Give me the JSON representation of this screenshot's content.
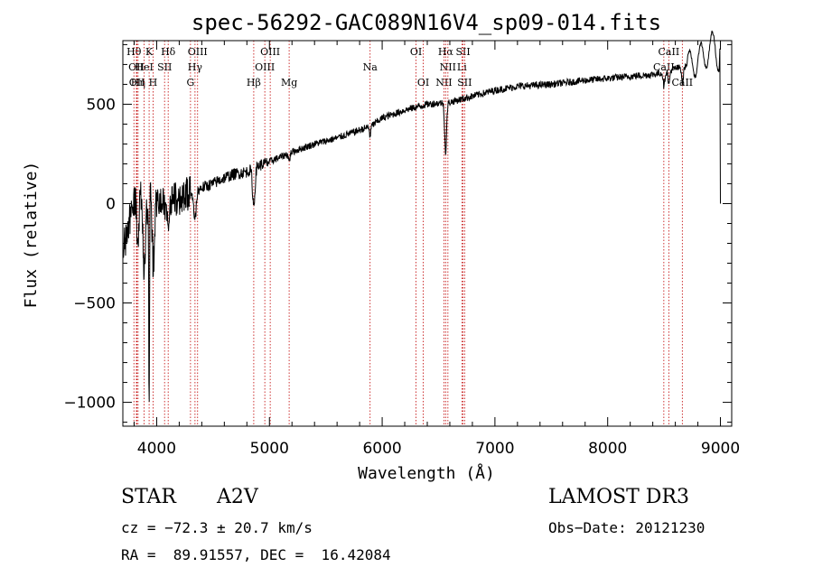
{
  "chart_data": {
    "type": "line",
    "title": "spec-56292-GAC089N16V4_sp09-014.fits",
    "xlabel": "Wavelength (Å)",
    "ylabel": "Flux (relative)",
    "xlim": [
      3700,
      9100
    ],
    "ylim": [
      -1120,
      820
    ],
    "xticks": [
      4000,
      5000,
      6000,
      7000,
      8000,
      9000
    ],
    "xtick_labels": [
      "4000",
      "5000",
      "6000",
      "7000",
      "8000",
      "9000"
    ],
    "yticks": [
      500,
      0,
      -500,
      -1000
    ],
    "ytick_labels": [
      "500",
      "0",
      "−500",
      "−1000"
    ],
    "spectrum_anchors": [
      [
        3700,
        -250
      ],
      [
        3760,
        -80
      ],
      [
        3800,
        -10
      ],
      [
        3850,
        50
      ],
      [
        3900,
        -60
      ],
      [
        3950,
        60
      ],
      [
        4000,
        0
      ],
      [
        4100,
        10
      ],
      [
        4200,
        30
      ],
      [
        4300,
        50
      ],
      [
        4400,
        80
      ],
      [
        4500,
        100
      ],
      [
        4600,
        130
      ],
      [
        4700,
        150
      ],
      [
        4800,
        160
      ],
      [
        4900,
        190
      ],
      [
        5000,
        210
      ],
      [
        5200,
        260
      ],
      [
        5400,
        300
      ],
      [
        5600,
        330
      ],
      [
        5800,
        370
      ],
      [
        5900,
        390
      ],
      [
        6000,
        430
      ],
      [
        6200,
        470
      ],
      [
        6400,
        500
      ],
      [
        6600,
        510
      ],
      [
        6800,
        540
      ],
      [
        7000,
        570
      ],
      [
        7200,
        590
      ],
      [
        7500,
        600
      ],
      [
        7800,
        620
      ],
      [
        8000,
        630
      ],
      [
        8200,
        640
      ],
      [
        8400,
        650
      ],
      [
        8500,
        660
      ],
      [
        8600,
        680
      ],
      [
        8700,
        690
      ],
      [
        8800,
        720
      ],
      [
        8900,
        770
      ],
      [
        8950,
        800
      ],
      [
        8990,
        720
      ],
      [
        9000,
        0
      ]
    ],
    "absorption_features": [
      {
        "x": 3835,
        "depth": 250,
        "width": 12
      },
      {
        "x": 3889,
        "depth": 300,
        "width": 12
      },
      {
        "x": 3933,
        "depth": 1000,
        "width": 5
      },
      {
        "x": 3970,
        "depth": 350,
        "width": 14
      },
      {
        "x": 4102,
        "depth": 100,
        "width": 15
      },
      {
        "x": 4340,
        "depth": 140,
        "width": 15
      },
      {
        "x": 4861,
        "depth": 190,
        "width": 15
      },
      {
        "x": 5175,
        "depth": 40,
        "width": 10
      },
      {
        "x": 5893,
        "depth": 50,
        "width": 8
      },
      {
        "x": 6563,
        "depth": 250,
        "width": 12
      },
      {
        "x": 8500,
        "depth": 70,
        "width": 10
      },
      {
        "x": 8544,
        "depth": 70,
        "width": 10
      },
      {
        "x": 8664,
        "depth": 80,
        "width": 10
      }
    ],
    "line_markers": [
      {
        "x": 3798,
        "label": "Hθ",
        "row": 1
      },
      {
        "x": 3820,
        "label": "OII",
        "row": 2
      },
      {
        "x": 3825,
        "label": "OII",
        "row": 3
      },
      {
        "x": 3835,
        "label": "Hη",
        "row": 3
      },
      {
        "x": 3889,
        "label": "HeI",
        "row": 2
      },
      {
        "x": 3933,
        "label": "K",
        "row": 1
      },
      {
        "x": 3968,
        "label": "H",
        "row": 3
      },
      {
        "x": 4070,
        "label": "SII",
        "row": 2
      },
      {
        "x": 4102,
        "label": "Hδ",
        "row": 1
      },
      {
        "x": 4300,
        "label": "G",
        "row": 3
      },
      {
        "x": 4340,
        "label": "Hγ",
        "row": 2
      },
      {
        "x": 4363,
        "label": "OIII",
        "row": 1
      },
      {
        "x": 4861,
        "label": "Hβ",
        "row": 3
      },
      {
        "x": 4959,
        "label": "OIII",
        "row": 2
      },
      {
        "x": 5007,
        "label": "OIII",
        "row": 1
      },
      {
        "x": 5175,
        "label": "Mg",
        "row": 3
      },
      {
        "x": 5893,
        "label": "Na",
        "row": 2
      },
      {
        "x": 6300,
        "label": "OI",
        "row": 1
      },
      {
        "x": 6364,
        "label": "OI",
        "row": 3
      },
      {
        "x": 6548,
        "label": "NII",
        "row": 3
      },
      {
        "x": 6563,
        "label": "Hα",
        "row": 1
      },
      {
        "x": 6583,
        "label": "NII",
        "row": 2
      },
      {
        "x": 6707,
        "label": "Li",
        "row": 2
      },
      {
        "x": 6717,
        "label": "SII",
        "row": 1
      },
      {
        "x": 6731,
        "label": "SII",
        "row": 3
      },
      {
        "x": 8498,
        "label": "CaII",
        "row": 2
      },
      {
        "x": 8542,
        "label": "CaII",
        "row": 1
      },
      {
        "x": 8662,
        "label": "CaII",
        "row": 3
      }
    ]
  },
  "info": {
    "class": "STAR",
    "subclass": "A2V",
    "survey": "LAMOST DR3",
    "cz": "cz = −72.3 ± 20.7 km/s",
    "obs_date": "Obs−Date: 20121230",
    "coords": "RA =  89.91557, DEC =  16.42084"
  }
}
